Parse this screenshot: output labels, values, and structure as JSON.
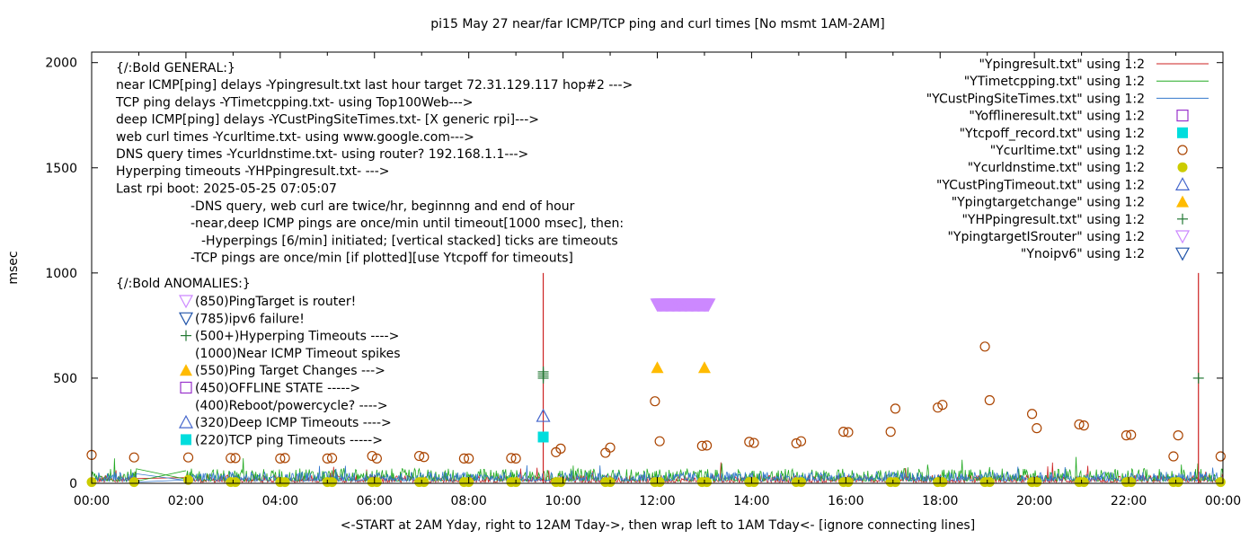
{
  "chart_data": {
    "type": "scatter",
    "title": "pi15 May 27  near/far ICMP/TCP ping and curl times [No msmt 1AM-2AM]",
    "ylabel": "msec",
    "xlabel": "<-START at 2AM Yday, right to 12AM Tday->, then wrap left to 1AM Tday<- [ignore connecting lines]",
    "xlim": [
      0,
      24
    ],
    "ylim": [
      0,
      2050
    ],
    "x_ticks": [
      "00:00",
      "02:00",
      "04:00",
      "06:00",
      "08:00",
      "10:00",
      "12:00",
      "14:00",
      "16:00",
      "18:00",
      "20:00",
      "22:00",
      "00:00"
    ],
    "y_ticks": [
      "0",
      "500",
      "1000",
      "1500",
      "2000"
    ],
    "y_tick_values": [
      0,
      500,
      1000,
      1500,
      2000
    ],
    "annotations": {
      "general": [
        "{/:Bold GENERAL:}",
        "near ICMP[ping] delays -Ypingresult.txt last hour target 72.31.129.117 hop#2 --->",
        "TCP ping delays -YTimetcpping.txt- using Top100Web--->",
        "deep ICMP[ping] delays -YCustPingSiteTimes.txt- [X generic rpi]--->",
        "web curl times -Ycurltime.txt- using www.google.com--->",
        "DNS query times -Ycurldnstime.txt- using router? 192.168.1.1--->",
        "Hyperping timeouts -YHPpingresult.txt- --->",
        "Last rpi boot: 2025-05-25 07:05:07"
      ],
      "notes": [
        "-DNS query, web curl are twice/hr, beginnng and end of hour",
        "-near,deep ICMP pings are once/min until timeout[1000 msec], then:",
        "-Hyperpings [6/min] initiated; [vertical stacked] ticks are timeouts",
        "-TCP pings are once/min [if plotted][use Ytcpoff for timeouts]"
      ],
      "anomalies_title": "{/:Bold ANOMALIES:}",
      "anomalies": [
        {
          "text": "(850)PingTarget is router!",
          "marker": "tri-down",
          "color": "#cc88ff"
        },
        {
          "text": "(785)ipv6 failure!",
          "marker": "tri-down",
          "color": "#2255aa"
        },
        {
          "text": "(500+)Hyperping Timeouts ---->",
          "marker": "plus",
          "color": "#227733"
        },
        {
          "text": "(1000)Near ICMP Timeout spikes",
          "marker": "none",
          "color": "#000000"
        },
        {
          "text": "(550)Ping Target Changes --->",
          "marker": "tri-up-filled",
          "color": "#ffbb00"
        },
        {
          "text": "(450)OFFLINE STATE ----->",
          "marker": "square-open",
          "color": "#9933cc"
        },
        {
          "text": "(400)Reboot/powercycle? ---->",
          "marker": "none",
          "color": "#000000"
        },
        {
          "text": "(320)Deep ICMP Timeouts ---->",
          "marker": "tri-up-open",
          "color": "#4466cc"
        },
        {
          "text": "(220)TCP ping Timeouts ----->",
          "marker": "square-filled",
          "color": "#00dddd"
        }
      ]
    },
    "legend_position": "top-right",
    "legend": [
      {
        "label": "\"Ypingresult.txt\" using 1:2",
        "marker": "line",
        "color": "#cc2222"
      },
      {
        "label": "\"YTimetcpping.txt\" using 1:2",
        "marker": "line",
        "color": "#22aa22"
      },
      {
        "label": "\"YCustPingSiteTimes.txt\" using 1:2",
        "marker": "line",
        "color": "#3377cc"
      },
      {
        "label": "\"Yofflineresult.txt\" using 1:2",
        "marker": "square-open",
        "color": "#9933cc"
      },
      {
        "label": "\"Ytcpoff_record.txt\" using 1:2",
        "marker": "square-filled",
        "color": "#00dddd"
      },
      {
        "label": "\"Ycurltime.txt\" using 1:2",
        "marker": "circle-open",
        "color": "#aa4400"
      },
      {
        "label": "\"Ycurldnstime.txt\" using 1:2",
        "marker": "circle-filled",
        "color": "#cccc00"
      },
      {
        "label": "\"YCustPingTimeout.txt\" using 1:2",
        "marker": "tri-up-open",
        "color": "#4466cc"
      },
      {
        "label": "\"Ypingtargetchange\" using 1:2",
        "marker": "tri-up-filled",
        "color": "#ffbb00"
      },
      {
        "label": "\"YHPpingresult.txt\" using 1:2",
        "marker": "plus",
        "color": "#227733"
      },
      {
        "label": "\"YpingtargetISrouter\" using 1:2",
        "marker": "tri-down",
        "color": "#cc88ff"
      },
      {
        "label": "\"Ynoipv6\" using 1:2",
        "marker": "tri-down",
        "color": "#2255aa"
      }
    ],
    "series": {
      "curl_times": [
        [
          0.0,
          135
        ],
        [
          0.9,
          123
        ],
        [
          2.05,
          123
        ],
        [
          2.95,
          120
        ],
        [
          3.05,
          120
        ],
        [
          4.0,
          118
        ],
        [
          4.1,
          120
        ],
        [
          5.0,
          118
        ],
        [
          5.1,
          120
        ],
        [
          5.95,
          130
        ],
        [
          6.05,
          118
        ],
        [
          6.95,
          130
        ],
        [
          7.05,
          125
        ],
        [
          7.9,
          118
        ],
        [
          8.0,
          118
        ],
        [
          8.9,
          120
        ],
        [
          9.0,
          118
        ],
        [
          9.85,
          148
        ],
        [
          9.95,
          165
        ],
        [
          10.9,
          145
        ],
        [
          11.0,
          170
        ],
        [
          11.95,
          390
        ],
        [
          12.05,
          200
        ],
        [
          12.95,
          178
        ],
        [
          13.05,
          180
        ],
        [
          13.95,
          197
        ],
        [
          14.05,
          192
        ],
        [
          14.95,
          190
        ],
        [
          15.05,
          200
        ],
        [
          15.95,
          245
        ],
        [
          16.05,
          243
        ],
        [
          16.95,
          245
        ],
        [
          17.05,
          355
        ],
        [
          17.95,
          360
        ],
        [
          18.05,
          373
        ],
        [
          18.95,
          650
        ],
        [
          19.05,
          395
        ],
        [
          19.95,
          330
        ],
        [
          20.05,
          262
        ],
        [
          20.95,
          280
        ],
        [
          21.05,
          275
        ],
        [
          21.95,
          228
        ],
        [
          22.05,
          230
        ],
        [
          22.95,
          128
        ],
        [
          23.05,
          228
        ],
        [
          23.95,
          128
        ]
      ],
      "dns_times": [
        [
          0.0,
          6
        ],
        [
          0.9,
          6
        ],
        [
          2.05,
          16
        ],
        [
          2.95,
          6
        ],
        [
          3.05,
          6
        ],
        [
          4.0,
          6
        ],
        [
          4.1,
          6
        ],
        [
          5.0,
          6
        ],
        [
          5.1,
          6
        ],
        [
          5.95,
          6
        ],
        [
          6.05,
          6
        ],
        [
          6.95,
          6
        ],
        [
          7.05,
          6
        ],
        [
          7.9,
          6
        ],
        [
          8.0,
          6
        ],
        [
          8.9,
          6
        ],
        [
          9.0,
          6
        ],
        [
          9.85,
          6
        ],
        [
          9.95,
          6
        ],
        [
          10.9,
          6
        ],
        [
          11.0,
          6
        ],
        [
          11.95,
          6
        ],
        [
          12.05,
          6
        ],
        [
          12.95,
          6
        ],
        [
          13.05,
          6
        ],
        [
          13.95,
          6
        ],
        [
          14.05,
          6
        ],
        [
          14.95,
          6
        ],
        [
          15.05,
          6
        ],
        [
          15.95,
          6
        ],
        [
          16.05,
          6
        ],
        [
          16.95,
          6
        ],
        [
          17.05,
          6
        ],
        [
          17.95,
          6
        ],
        [
          18.05,
          6
        ],
        [
          18.95,
          6
        ],
        [
          19.05,
          6
        ],
        [
          19.95,
          6
        ],
        [
          20.05,
          6
        ],
        [
          20.95,
          6
        ],
        [
          21.05,
          6
        ],
        [
          21.95,
          6
        ],
        [
          22.05,
          6
        ],
        [
          22.95,
          6
        ],
        [
          23.05,
          6
        ],
        [
          23.95,
          6
        ]
      ],
      "near_icmp_timeout_spikes_x": [
        9.58,
        23.48
      ],
      "near_icmp_timeout_value": 1000,
      "hyperping_timeouts": [
        [
          9.58,
          500
        ],
        [
          9.58,
          510
        ],
        [
          9.58,
          520
        ],
        [
          9.58,
          530
        ],
        [
          23.48,
          500
        ]
      ],
      "ping_target_changes": [
        [
          12.0,
          550
        ],
        [
          13.0,
          550
        ]
      ],
      "deep_icmp_timeouts": [
        [
          9.58,
          320
        ]
      ],
      "tcp_ping_timeouts": [
        [
          9.58,
          220
        ]
      ],
      "ping_target_is_router": {
        "x_start": 12.0,
        "x_end": 13.1,
        "value": 850
      },
      "near_icmp_baseline_msec": [
        5,
        40
      ],
      "tcp_ping_baseline_msec": [
        10,
        70
      ],
      "deep_icmp_baseline_msec": [
        10,
        55
      ]
    }
  }
}
